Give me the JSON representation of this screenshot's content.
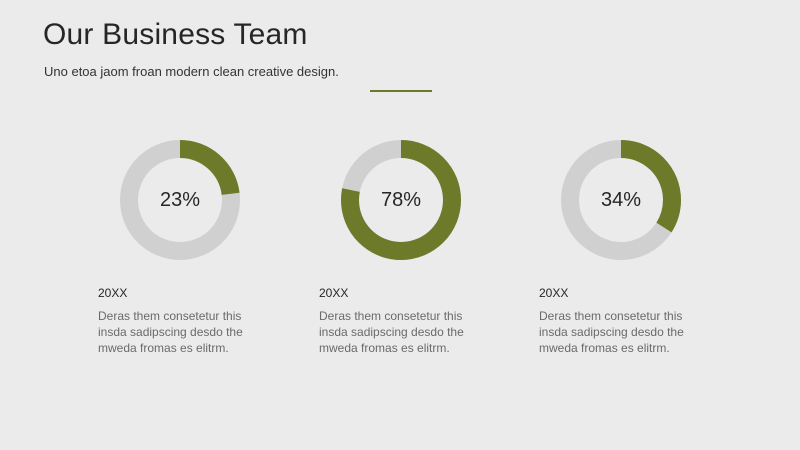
{
  "header": {
    "title": "Our Business Team",
    "subtitle": "Uno etoa jaom froan modern clean creative design."
  },
  "colors": {
    "accent": "#6c7a2a",
    "track": "#d0d0d0",
    "background": "#ebebeb"
  },
  "cards": [
    {
      "percent_label": "23%",
      "fill_percent": 23,
      "year": "20XX",
      "description": "Deras them consetetur this insda sadipscing desdo the mweda fromas es elitrm."
    },
    {
      "percent_label": "78%",
      "fill_percent": 78,
      "year": "20XX",
      "description": "Deras them consetetur this insda sadipscing desdo the mweda fromas es elitrm."
    },
    {
      "percent_label": "34%",
      "fill_percent": 34,
      "year": "20XX",
      "description": "Deras them consetetur this insda sadipscing desdo the mweda fromas es elitrm."
    }
  ]
}
